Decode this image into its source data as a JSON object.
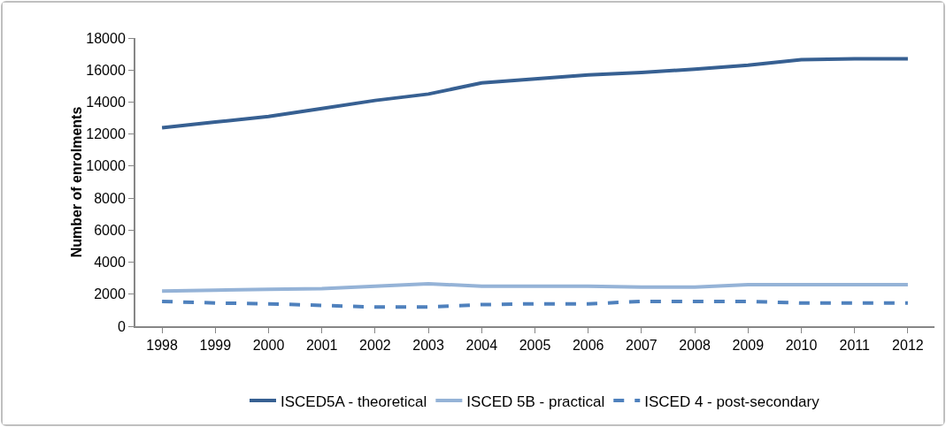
{
  "chart_data": {
    "type": "line",
    "ylabel": "Number of enrolments",
    "categories": [
      "1998",
      "1999",
      "2000",
      "2001",
      "2002",
      "2003",
      "2004",
      "2005",
      "2006",
      "2007",
      "2008",
      "2009",
      "2010",
      "2011",
      "2012"
    ],
    "series": [
      {
        "name": "ISCED5A - theoretical",
        "color": "#376092",
        "line_style": "solid",
        "values": [
          12400,
          12750,
          13100,
          13600,
          14100,
          14500,
          15200,
          15450,
          15700,
          15850,
          16050,
          16300,
          16650,
          16700,
          16700
        ]
      },
      {
        "name": "ISCED 5B - practical",
        "color": "#95b3d7",
        "line_style": "solid",
        "values": [
          2200,
          2250,
          2300,
          2350,
          2500,
          2650,
          2500,
          2500,
          2500,
          2450,
          2450,
          2600,
          2600,
          2600,
          2600
        ]
      },
      {
        "name": "ISCED 4 - post-secondary",
        "color": "#4f81bd",
        "line_style": "dashed",
        "values": [
          1550,
          1450,
          1400,
          1300,
          1200,
          1200,
          1350,
          1400,
          1400,
          1550,
          1550,
          1550,
          1450,
          1450,
          1450
        ]
      }
    ],
    "ylim": [
      0,
      18000
    ],
    "yticks": [
      0,
      2000,
      4000,
      6000,
      8000,
      10000,
      12000,
      14000,
      16000,
      18000
    ],
    "grid": false,
    "legend": "bottom",
    "marker": "none"
  }
}
